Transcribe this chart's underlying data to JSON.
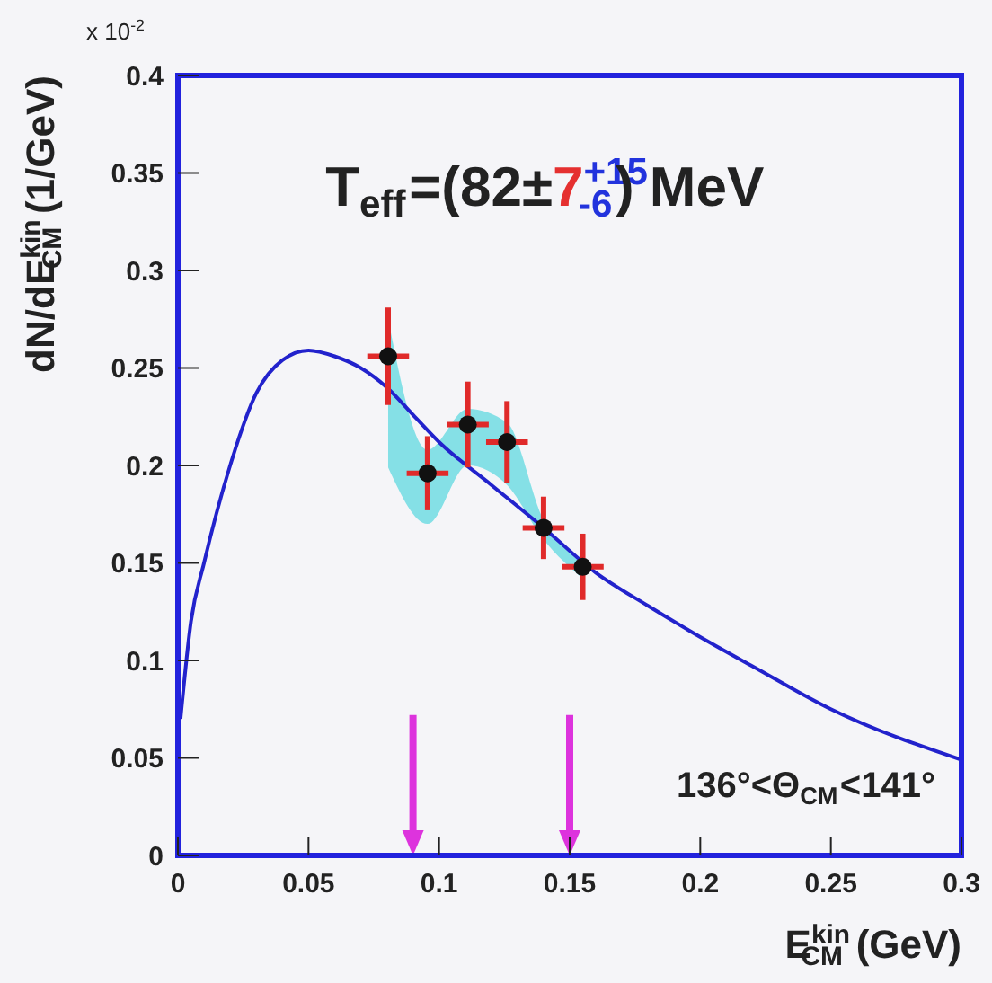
{
  "chart_data": {
    "type": "line",
    "xlabel": "E$^{kin}$$_{CM}$ (GeV)",
    "ylabel": "dN/dE$^{kin}$$_{CM}$  (1/GeV)",
    "annotations": [
      "x 10$^{-2}$",
      "T$_{eff}$=(82±7$^{+15}$$_{-6}$) MeV",
      "136°<Θ$_{CM}$<141°"
    ],
    "xlim": [
      0,
      0.3
    ],
    "xticks": [
      0,
      0.05,
      0.1,
      0.15,
      0.2,
      0.25,
      0.3
    ],
    "ylim": [
      0,
      0.4
    ],
    "yticks": [
      0,
      0.05,
      0.1,
      0.15,
      0.2,
      0.25,
      0.3,
      0.35,
      0.4
    ],
    "grid": false,
    "series": [
      {
        "color": "#2222cc",
        "marker": "none",
        "x": [
          0.001,
          0.005,
          0.01,
          0.02,
          0.03,
          0.04,
          0.05,
          0.06,
          0.07,
          0.08,
          0.09,
          0.1,
          0.12,
          0.14,
          0.16,
          0.18,
          0.2,
          0.22,
          0.25,
          0.3
        ],
        "values": [
          0.07,
          0.12,
          0.15,
          0.2,
          0.237,
          0.254,
          0.259,
          0.256,
          0.25,
          0.24,
          0.226,
          0.212,
          0.19,
          0.168,
          0.145,
          0.128,
          0.112,
          0.097,
          0.075,
          0.049
        ]
      },
      {
        "type": "scatter",
        "color": "#111111",
        "marker": "circle",
        "x": [
          0.0805,
          0.0956,
          0.111,
          0.126,
          0.14,
          0.155
        ],
        "values": [
          0.256,
          0.196,
          0.221,
          0.212,
          0.168,
          0.148
        ],
        "errors": [
          0.025,
          0.019,
          0.022,
          0.021,
          0.016,
          0.017
        ],
        "xerrors": [
          0.008,
          0.008,
          0.008,
          0.008,
          0.008,
          0.008
        ],
        "lower": [
          0.199,
          0.17,
          0.2,
          0.19,
          0.162,
          0.142
        ],
        "upper": [
          0.275,
          0.208,
          0.229,
          0.222,
          0.172,
          0.152
        ]
      }
    ],
    "ref_lines": [
      {
        "axis": "x",
        "value": 0.09,
        "color": "#dd33dd"
      },
      {
        "axis": "x",
        "value": 0.15,
        "color": "#dd33dd"
      }
    ]
  }
}
